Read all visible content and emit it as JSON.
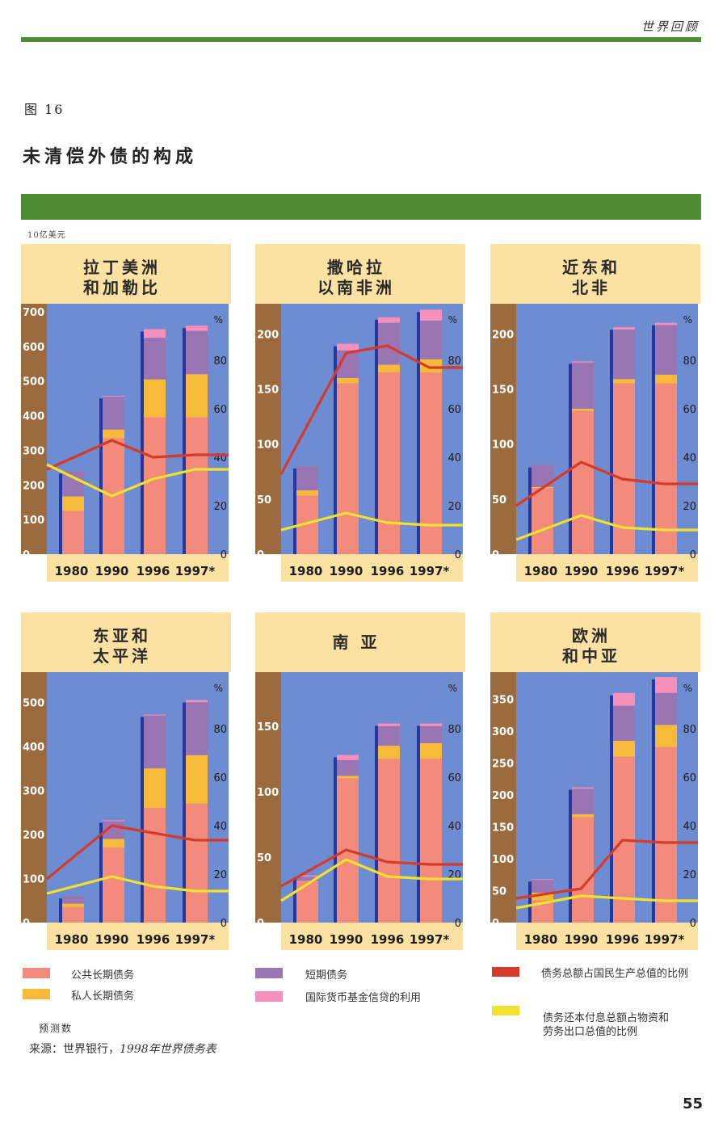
{
  "header": {
    "title": "世界回顾"
  },
  "figure": {
    "label": "图 16",
    "title": "未清偿外债的构成",
    "unit": "10亿美元"
  },
  "colors": {
    "public": "#f28b7c",
    "private": "#f7b93a",
    "short": "#9a75b4",
    "imf": "#f58fbb",
    "gdp_line": "#d63a2a",
    "exports_line": "#f1e22d",
    "plot_bg": "#6e8cd1",
    "title_bg": "#fbe1a2",
    "left_axis": "#9c6b3d",
    "bar_shadow": "#2538a0"
  },
  "chart_data": [
    {
      "type": "bar",
      "stacked": true,
      "title_lines": [
        "拉丁美洲",
        "和加勒比"
      ],
      "categories": [
        "1980",
        "1990",
        "1996",
        "1997*"
      ],
      "ylim": [
        0,
        700
      ],
      "yticks": [
        0,
        100,
        200,
        300,
        400,
        500,
        600,
        700
      ],
      "y2lim": [
        0,
        100
      ],
      "y2ticks": [
        0,
        20,
        40,
        60,
        80
      ],
      "y2label": "%",
      "series": [
        {
          "name": "公共长期债务",
          "values": [
            125,
            335,
            395,
            395
          ]
        },
        {
          "name": "私人长期债务",
          "values": [
            42,
            25,
            110,
            125
          ]
        },
        {
          "name": "短期债务",
          "values": [
            73,
            95,
            120,
            125
          ]
        },
        {
          "name": "国际货币基金信贷的利用",
          "values": [
            0,
            2,
            25,
            15
          ]
        }
      ],
      "lines": [
        {
          "name": "债务总额占国民生产总值的比例",
          "values": [
            35,
            47,
            40,
            41
          ]
        },
        {
          "name": "债务还本付息总额占物资和劳务出口总值的比例",
          "values": [
            37,
            24,
            31,
            35
          ]
        }
      ]
    },
    {
      "type": "bar",
      "stacked": true,
      "title_lines": [
        "撒哈拉",
        "以南非洲"
      ],
      "categories": [
        "1980",
        "1990",
        "1996",
        "1997*"
      ],
      "ylim": [
        0,
        220
      ],
      "yticks": [
        0,
        50,
        100,
        150,
        200
      ],
      "y2lim": [
        0,
        100
      ],
      "y2ticks": [
        0,
        20,
        40,
        60,
        80
      ],
      "y2label": "%",
      "series": [
        {
          "name": "公共长期债务",
          "values": [
            53,
            155,
            165,
            165
          ]
        },
        {
          "name": "私人长期债务",
          "values": [
            5,
            5,
            7,
            12
          ]
        },
        {
          "name": "短期债务",
          "values": [
            22,
            25,
            38,
            35
          ]
        },
        {
          "name": "国际货币基金信贷的利用",
          "values": [
            0,
            6,
            5,
            10
          ]
        }
      ],
      "lines": [
        {
          "name": "债务总额占国民生产总值的比例",
          "values": [
            33,
            83,
            86,
            77
          ]
        },
        {
          "name": "债务还本付息总额占物资和劳务出口总值的比例",
          "values": [
            10,
            17,
            13,
            12
          ]
        }
      ]
    },
    {
      "type": "bar",
      "stacked": true,
      "title_lines": [
        "近东和",
        "北非"
      ],
      "categories": [
        "1980",
        "1990",
        "1996",
        "1997*"
      ],
      "ylim": [
        0,
        220
      ],
      "yticks": [
        0,
        50,
        100,
        150,
        200
      ],
      "y2lim": [
        0,
        100
      ],
      "y2ticks": [
        0,
        20,
        40,
        60,
        80
      ],
      "y2label": "%",
      "series": [
        {
          "name": "公共长期债务",
          "values": [
            60,
            130,
            155,
            155
          ]
        },
        {
          "name": "私人长期债务",
          "values": [
            1,
            2,
            4,
            8
          ]
        },
        {
          "name": "短期债务",
          "values": [
            20,
            42,
            45,
            45
          ]
        },
        {
          "name": "国际货币基金信贷的利用",
          "values": [
            0,
            1,
            2,
            2
          ]
        }
      ],
      "lines": [
        {
          "name": "债务总额占国民生产总值的比例",
          "values": [
            20,
            38,
            31,
            29
          ]
        },
        {
          "name": "债务还本付息总额占物资和劳务出口总值的比例",
          "values": [
            6,
            16,
            11,
            10
          ]
        }
      ]
    },
    {
      "type": "bar",
      "stacked": true,
      "title_lines": [
        "东亚和",
        "太平洋"
      ],
      "categories": [
        "1980",
        "1990",
        "1996",
        "1997*"
      ],
      "ylim": [
        0,
        550
      ],
      "yticks": [
        0,
        100,
        200,
        300,
        400,
        500
      ],
      "y2lim": [
        0,
        100
      ],
      "y2ticks": [
        0,
        20,
        40,
        60,
        80
      ],
      "y2label": "%",
      "series": [
        {
          "name": "公共长期债务",
          "values": [
            35,
            170,
            260,
            270
          ]
        },
        {
          "name": "私人长期债务",
          "values": [
            8,
            20,
            90,
            110
          ]
        },
        {
          "name": "短期债务",
          "values": [
            17,
            40,
            120,
            120
          ]
        },
        {
          "name": "国际货币基金信贷的利用",
          "values": [
            0,
            2,
            2,
            5
          ]
        }
      ],
      "lines": [
        {
          "name": "债务总额占国民生产总值的比例",
          "values": [
            18,
            40,
            37,
            34
          ]
        },
        {
          "name": "债务还本付息总额占物资和劳务出口总值的比例",
          "values": [
            12,
            19,
            15,
            13
          ]
        }
      ]
    },
    {
      "type": "bar",
      "stacked": true,
      "title_lines": [
        "南 亚"
      ],
      "categories": [
        "1980",
        "1990",
        "1996",
        "1997*"
      ],
      "ylim": [
        0,
        185
      ],
      "yticks": [
        0,
        50,
        100,
        150
      ],
      "y2lim": [
        0,
        100
      ],
      "y2ticks": [
        0,
        20,
        40,
        60,
        80
      ],
      "y2label": "%",
      "series": [
        {
          "name": "公共长期债务",
          "values": [
            32,
            110,
            125,
            125
          ]
        },
        {
          "name": "私人长期债务",
          "values": [
            0,
            2,
            10,
            12
          ]
        },
        {
          "name": "短期债务",
          "values": [
            3,
            12,
            15,
            13
          ]
        },
        {
          "name": "国际货币基金信贷的利用",
          "values": [
            1,
            4,
            2,
            2
          ]
        }
      ],
      "lines": [
        {
          "name": "债务总额占国民生产总值的比例",
          "values": [
            15,
            30,
            25,
            24
          ]
        },
        {
          "name": "债务还本付息总额占物资和劳务出口总值的比例",
          "values": [
            9,
            26,
            19,
            18
          ]
        }
      ]
    },
    {
      "type": "bar",
      "stacked": true,
      "title_lines": [
        "欧洲",
        "和中亚"
      ],
      "categories": [
        "1980",
        "1990",
        "1996",
        "1997*"
      ],
      "ylim": [
        0,
        380
      ],
      "yticks": [
        0,
        50,
        100,
        150,
        200,
        250,
        300,
        350
      ],
      "y2lim": [
        0,
        100
      ],
      "y2ticks": [
        0,
        20,
        40,
        60,
        80
      ],
      "y2label": "%",
      "series": [
        {
          "name": "公共长期债务",
          "values": [
            35,
            165,
            260,
            275
          ]
        },
        {
          "name": "私人长期债务",
          "values": [
            12,
            5,
            25,
            35
          ]
        },
        {
          "name": "短期债务",
          "values": [
            20,
            40,
            55,
            50
          ]
        },
        {
          "name": "国际货币基金信贷的利用",
          "values": [
            1,
            2,
            20,
            25
          ]
        }
      ],
      "lines": [
        {
          "name": "债务总额占国民生产总值的比例",
          "values": [
            10,
            14,
            34,
            33
          ]
        },
        {
          "name": "债务还本付息总额占物资和劳务出口总值的比例",
          "values": [
            6,
            11,
            10,
            9
          ]
        }
      ]
    }
  ],
  "legend": [
    {
      "key": "public",
      "label": "公共长期债务"
    },
    {
      "key": "private",
      "label": "私人长期债务"
    },
    {
      "key": "short",
      "label": "短期债务"
    },
    {
      "key": "imf",
      "label": "国际货币基金信贷的利用"
    },
    {
      "key": "gdp_line",
      "label": "债务总额占国民生产总值的比例"
    },
    {
      "key": "exports_line",
      "label_lines": [
        "债务还本付息总额占物资和",
        "劳务出口总值的比例"
      ]
    }
  ],
  "notes": {
    "forecast": "预测数",
    "source_prefix": "来源：世界银行，",
    "source_title": "1998年世界债务表"
  },
  "page_number": "55"
}
